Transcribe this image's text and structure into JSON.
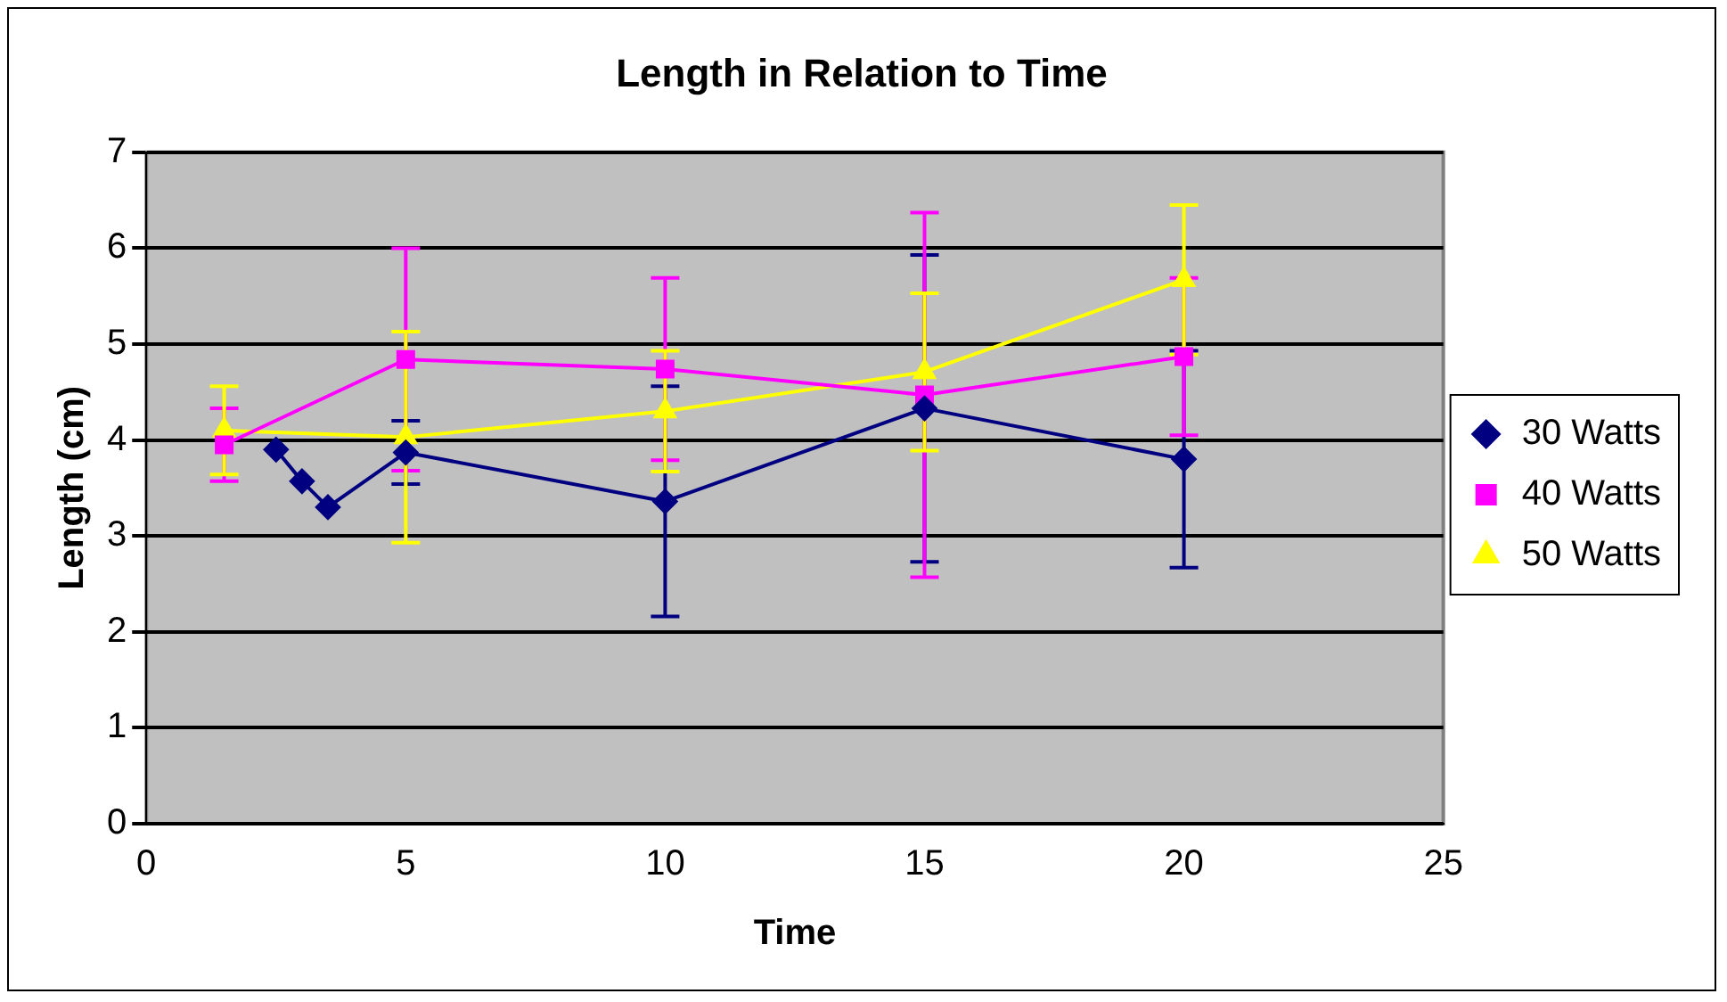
{
  "chart_data": {
    "type": "line",
    "title": "Length in Relation to Time",
    "xlabel": "Time",
    "ylabel": "Length (cm)",
    "xlim": [
      0,
      25
    ],
    "xticks": [
      0,
      5,
      10,
      15,
      20,
      25
    ],
    "ylim": [
      0,
      7
    ],
    "yticks": [
      0,
      1,
      2,
      3,
      4,
      5,
      6,
      7
    ],
    "grid": "y",
    "legend": "right",
    "line_style": "solid",
    "series": [
      {
        "name": "30 Watts",
        "color": "#000080",
        "marker": "diamond",
        "x": [
          2.5,
          3,
          3.5,
          5,
          10,
          15,
          20
        ],
        "values": [
          3.9,
          3.57,
          3.3,
          3.87,
          3.36,
          4.33,
          3.8
        ],
        "errors": [
          null,
          null,
          null,
          0.33,
          1.2,
          1.6,
          1.13
        ]
      },
      {
        "name": "40 Watts",
        "color": "#ff00ff",
        "marker": "square",
        "x": [
          1.5,
          5,
          10,
          15,
          20
        ],
        "values": [
          3.95,
          4.84,
          4.74,
          4.47,
          4.87
        ],
        "errors": [
          0.38,
          1.16,
          0.95,
          1.9,
          0.82
        ]
      },
      {
        "name": "50 Watts",
        "color": "#ffff00",
        "marker": "triangle",
        "x": [
          1.5,
          5,
          10,
          15,
          20
        ],
        "values": [
          4.1,
          4.03,
          4.3,
          4.71,
          5.67
        ],
        "errors": [
          0.46,
          1.1,
          0.63,
          0.82,
          0.78
        ]
      }
    ]
  }
}
